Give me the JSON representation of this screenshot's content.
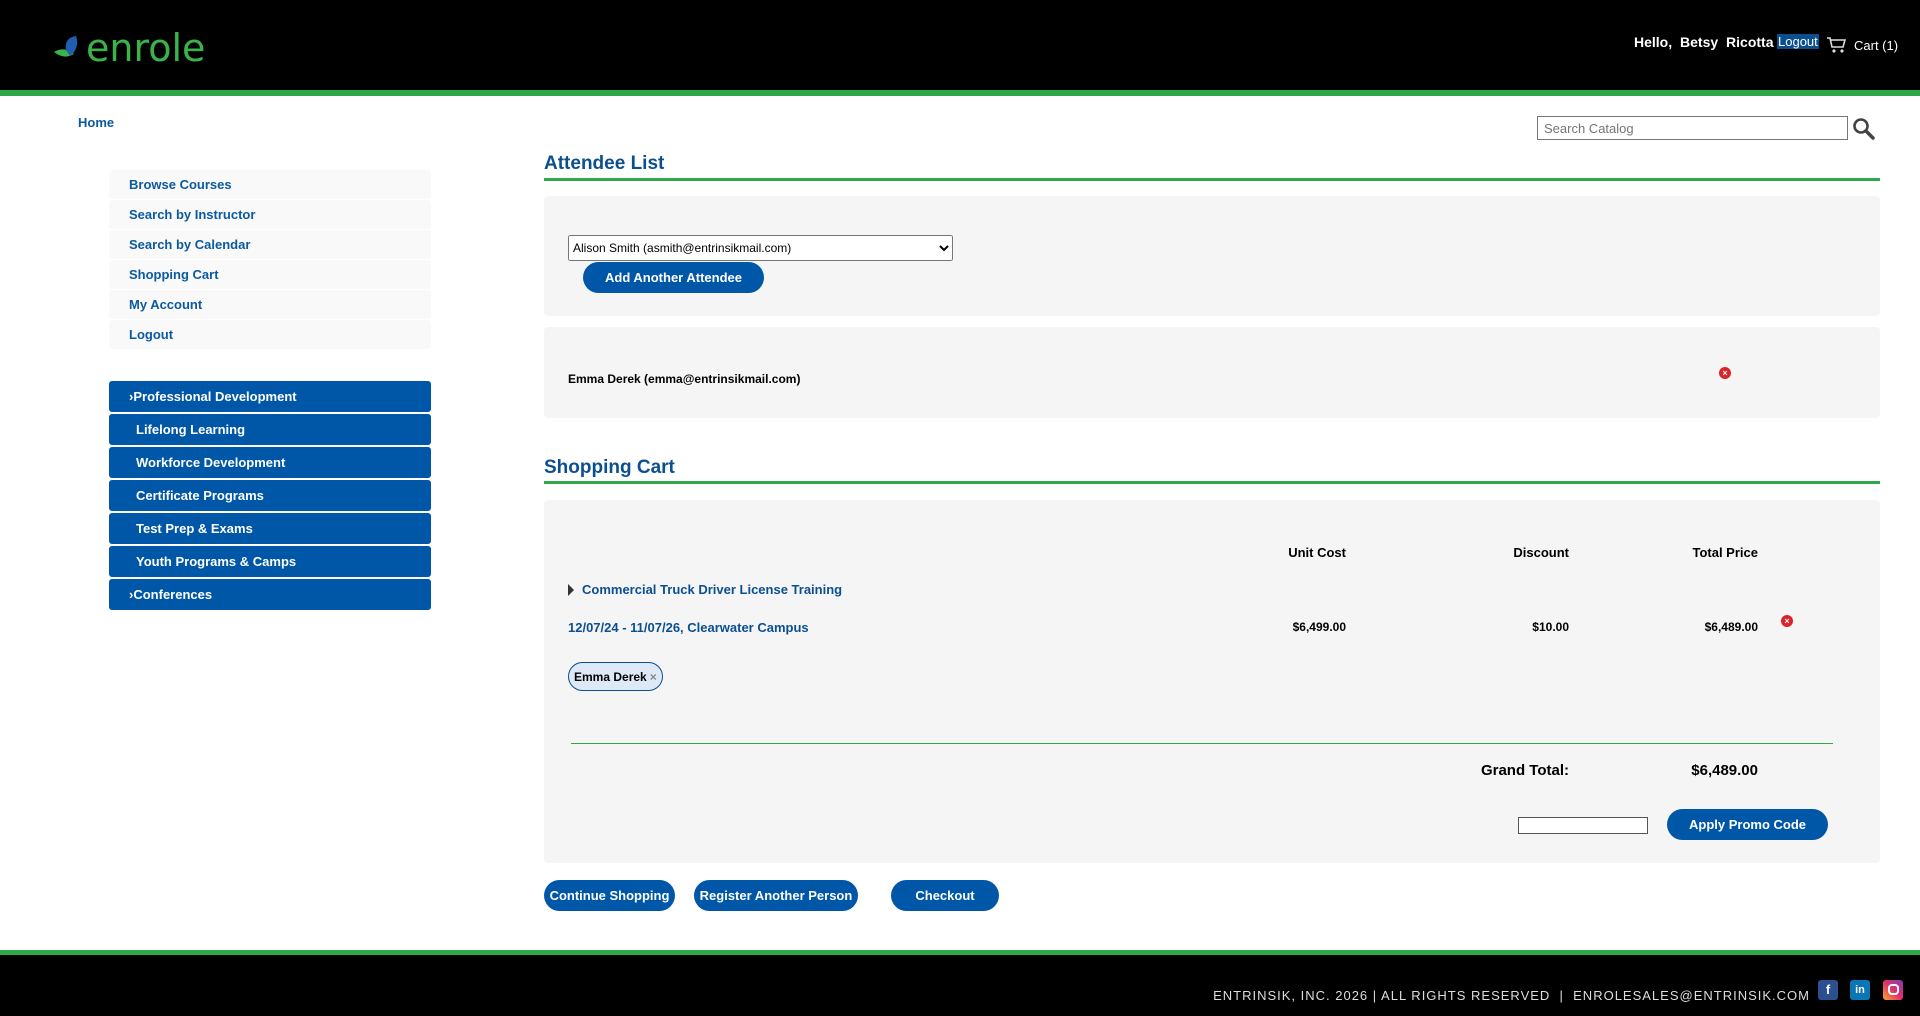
{
  "header": {
    "logo": "enrole",
    "greeting": "Hello,  Betsy  Ricotta",
    "logout": "Logout",
    "cart": "Cart (1)"
  },
  "breadcrumb": {
    "home": "Home"
  },
  "search": {
    "placeholder": "Search Catalog"
  },
  "sidebar": {
    "items": [
      {
        "label": "Browse Courses"
      },
      {
        "label": "Search by Instructor"
      },
      {
        "label": "Search by Calendar"
      },
      {
        "label": "Shopping Cart"
      },
      {
        "label": "My Account"
      },
      {
        "label": "Logout"
      }
    ],
    "categories": [
      {
        "label": "Professional Development",
        "arrow": true
      },
      {
        "label": "Lifelong Learning"
      },
      {
        "label": "Workforce Development"
      },
      {
        "label": "Certificate Programs"
      },
      {
        "label": "Test Prep & Exams"
      },
      {
        "label": "Youth Programs & Camps"
      },
      {
        "label": "Conferences",
        "arrow": true
      }
    ]
  },
  "attendees": {
    "title": "Attendee List",
    "selected": "Alison Smith (asmith@entrinsikmail.com)",
    "add_button": "Add Another Attendee",
    "list": [
      {
        "name": "Emma Derek (emma@entrinsikmail.com)"
      }
    ]
  },
  "cart": {
    "title": "Shopping Cart",
    "columns": {
      "unit_cost": "Unit Cost",
      "discount": "Discount",
      "total": "Total Price"
    },
    "items": [
      {
        "course": "Commercial Truck Driver License Training",
        "section": "12/07/24 - 11/07/26, Clearwater Campus",
        "unit_cost": "$6,499.00",
        "discount": "$10.00",
        "total": "$6,489.00",
        "attendee": "Emma Derek"
      }
    ],
    "grand_total_label": "Grand Total:",
    "grand_total": "$6,489.00",
    "promo_value": "",
    "promo_button": "Apply Promo Code"
  },
  "actions": {
    "continue": "Continue Shopping",
    "register": "Register Another Person",
    "checkout": "Checkout"
  },
  "footer": {
    "text": "ENTRINSIK, INC. 2026 | ALL RIGHTS RESERVED  |  ENROLESALES@ENTRINSIK.COM",
    "social": [
      "facebook",
      "linkedin",
      "instagram"
    ]
  },
  "colors": {
    "brand_green": "#2fa84a",
    "brand_blue": "#0057a8",
    "title_blue": "#0b4f91"
  }
}
